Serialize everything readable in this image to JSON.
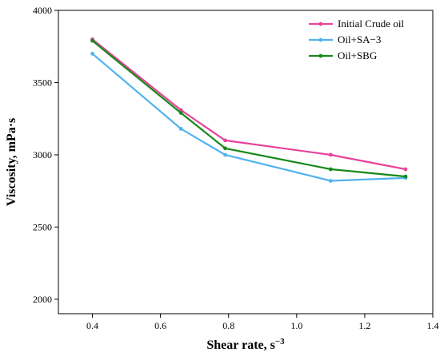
{
  "chart_data": {
    "type": "line",
    "xlabel": "Shear rate, s",
    "xlabel_sup": "−3",
    "ylabel": "Viscosity, mPa·s",
    "xlim": [
      0.3,
      1.4
    ],
    "ylim": [
      1900,
      4000
    ],
    "xticks": [
      "0.4",
      "0.6",
      "0.8",
      "1.0",
      "1.2",
      "1.4"
    ],
    "yticks": [
      "2000",
      "2500",
      "3000",
      "3500",
      "4000"
    ],
    "grid": false,
    "legend_position": "top-right",
    "series": [
      {
        "name": "Initial Crude oil",
        "color": "#e8439a",
        "x": [
          0.4,
          0.66,
          0.79,
          1.1,
          1.32
        ],
        "y": [
          3800,
          3310,
          3100,
          3000,
          2900
        ]
      },
      {
        "name": "Oil+SA−3",
        "color": "#4fb3f0",
        "x": [
          0.4,
          0.66,
          0.79,
          1.1,
          1.32
        ],
        "y": [
          3700,
          3180,
          3000,
          2820,
          2840
        ]
      },
      {
        "name": "Oil+SBG",
        "color": "#168a1a",
        "x": [
          0.4,
          0.66,
          0.79,
          1.1,
          1.32
        ],
        "y": [
          3790,
          3290,
          3045,
          2900,
          2850
        ]
      }
    ]
  }
}
